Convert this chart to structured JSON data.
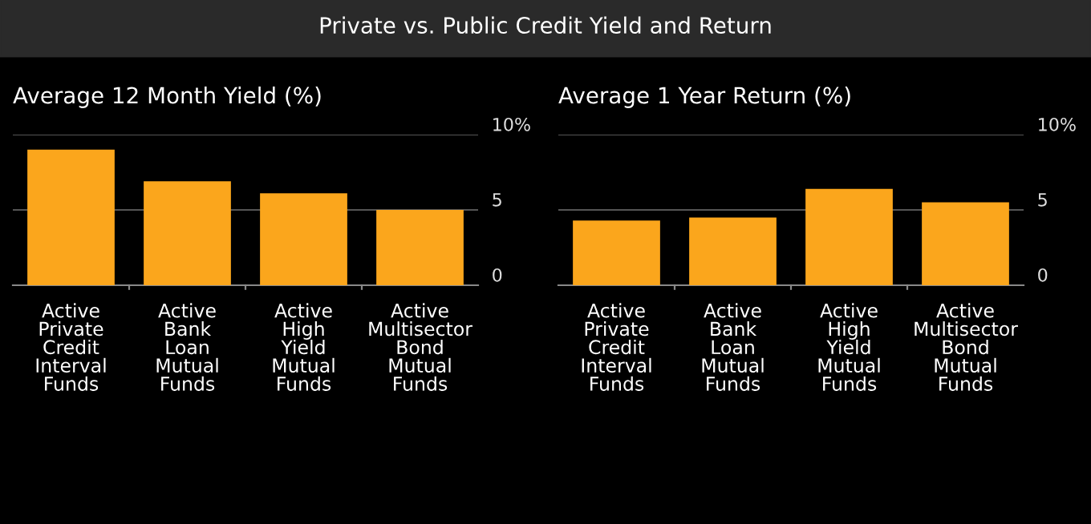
{
  "chart_data": [
    {
      "type": "bar",
      "title": "Average 12 Month Yield (%)",
      "categories": [
        "Active\nPrivate\nCredit\nInterval\nFunds",
        "Active\nBank\nLoan\nMutual\nFunds",
        "Active\nHigh\nYield\nMutual\nFunds",
        "Active\nMultisector\nBond\nMutual\nFunds"
      ],
      "values": [
        9.0,
        6.9,
        6.1,
        5.0
      ],
      "color": "#fba61c",
      "ylim": [
        0,
        10
      ],
      "yticks": [
        0,
        5,
        {
          "value": 10,
          "label": "10%"
        }
      ],
      "grid": "y",
      "annotations": [
        "Private vs. Public Credit Yield and Return"
      ]
    },
    {
      "type": "bar",
      "title": "Average 1 Year Return (%)",
      "categories": [
        "Active\nPrivate\nCredit\nInterval\nFunds",
        "Active\nBank\nLoan\nMutual\nFunds",
        "Active\nHigh\nYield\nMutual\nFunds",
        "Active\nMultisector\nBond\nMutual\nFunds"
      ],
      "values": [
        4.3,
        4.5,
        6.4,
        5.5
      ],
      "color": "#fba61c",
      "ylim": [
        0,
        10
      ],
      "yticks": [
        0,
        5,
        {
          "value": 10,
          "label": "10%"
        }
      ],
      "grid": "y"
    }
  ]
}
